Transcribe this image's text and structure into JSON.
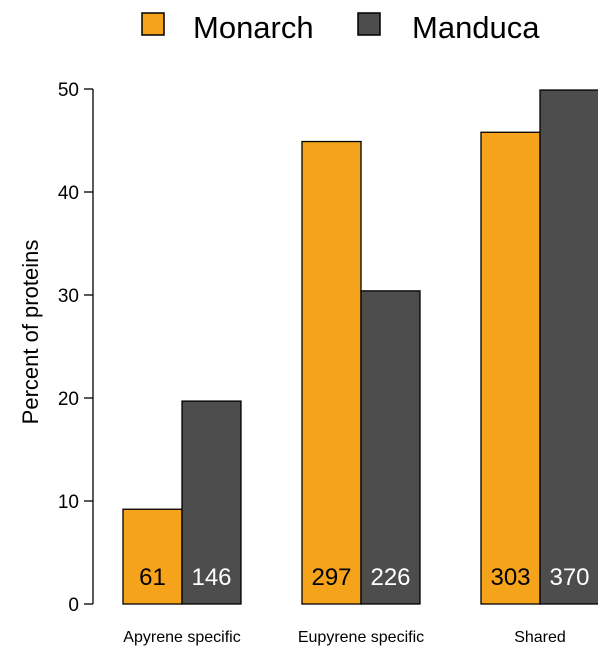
{
  "chart_data": {
    "type": "bar",
    "categories": [
      "Apyrene specific",
      "Eupyrene specific",
      "Shared"
    ],
    "series": [
      {
        "name": "Monarch",
        "values": [
          9.2,
          44.9,
          45.8
        ],
        "counts": [
          "61",
          "297",
          "303"
        ],
        "color": "#f5a31a"
      },
      {
        "name": "Manduca",
        "values": [
          19.7,
          30.4,
          49.9
        ],
        "counts": [
          "146",
          "226",
          "370"
        ],
        "color": "#4d4d4d"
      }
    ],
    "ylabel": "Percent of proteins",
    "xlabel": "",
    "ylim": [
      0,
      50
    ],
    "yticks": [
      "0",
      "10",
      "20",
      "30",
      "40",
      "50"
    ],
    "grid": false,
    "legend_position": "top"
  }
}
